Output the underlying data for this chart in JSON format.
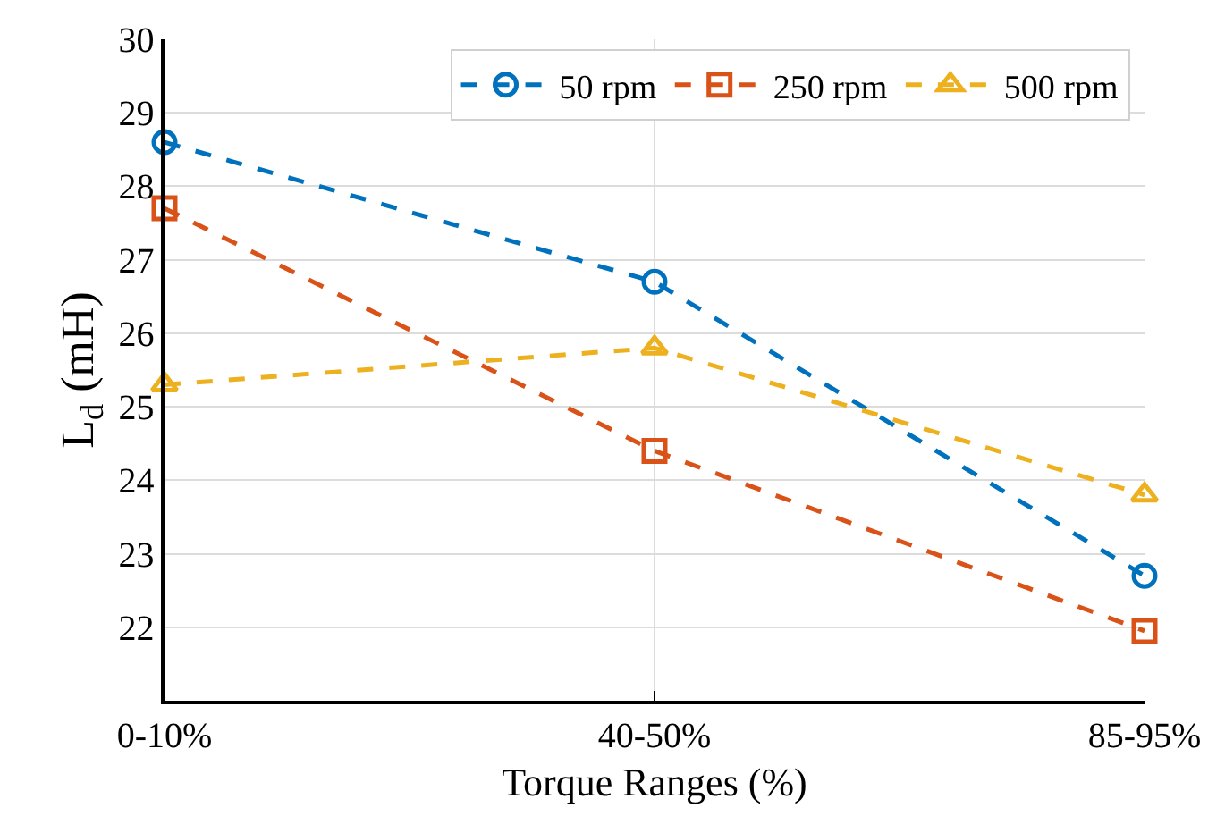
{
  "chart_data": {
    "type": "line",
    "xlabel": "Torque Ranges (%)",
    "ylabel": "L$_{d}$ (mH)",
    "categories": [
      "0-10%",
      "40-50%",
      "85-95%"
    ],
    "series": [
      {
        "name": "50 rpm",
        "color": "#0072bd",
        "marker": "circle",
        "values": [
          28.6,
          26.7,
          22.7
        ]
      },
      {
        "name": "250 rpm",
        "color": "#d95319",
        "marker": "square",
        "values": [
          27.7,
          24.4,
          21.95
        ]
      },
      {
        "name": "500 rpm",
        "color": "#edb120",
        "marker": "triangle",
        "values": [
          25.3,
          25.8,
          23.8
        ]
      }
    ],
    "ylim": [
      21,
      30
    ],
    "yticks": [
      22,
      23,
      24,
      25,
      26,
      27,
      28,
      29,
      30
    ],
    "grid": true,
    "legend": "top right",
    "line_style": "dashed"
  }
}
